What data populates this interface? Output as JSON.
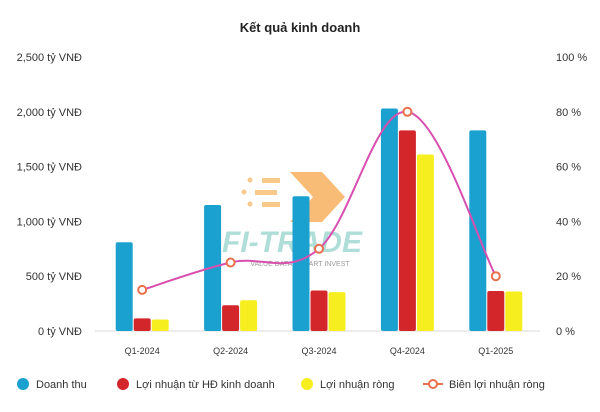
{
  "chart_data": {
    "type": "bar",
    "title": "Kết quả kinh doanh",
    "categories": [
      "Q1-2024",
      "Q2-2024",
      "Q3-2024",
      "Q4-2024",
      "Q1-2025"
    ],
    "y_left": {
      "ticks": [
        "0 tỷ VNĐ",
        "500 tỷ VNĐ",
        "1,000 tỷ VNĐ",
        "1,500 tỷ VNĐ",
        "2,000 tỷ VNĐ",
        "2,500 tỷ VNĐ"
      ],
      "ylim": [
        0,
        2500
      ]
    },
    "y_right": {
      "ticks": [
        "0 %",
        "20 %",
        "40 %",
        "60 %",
        "80 %",
        "100 %"
      ],
      "ylim": [
        0,
        100
      ]
    },
    "series": [
      {
        "name": "Doanh thu",
        "type": "bar",
        "color": "#1ba1cf",
        "values": [
          810,
          1150,
          1230,
          2030,
          1830
        ]
      },
      {
        "name": "Lợi nhuận từ HĐ kinh doanh",
        "type": "bar",
        "color": "#d3262b",
        "values": [
          115,
          235,
          370,
          1830,
          365
        ]
      },
      {
        "name": "Lợi nhuận ròng",
        "type": "bar",
        "color": "#f6ee1e",
        "values": [
          105,
          280,
          355,
          1610,
          360
        ]
      },
      {
        "name": "Biên lợi nhuận ròng",
        "type": "line",
        "axis": "right",
        "color": "#d94fb0",
        "marker_color": "#e8714d",
        "values": [
          15,
          25,
          30,
          80,
          20
        ]
      }
    ],
    "legend_position": "bottom",
    "grid": false
  },
  "watermark": {
    "brand": "FI-TRADE",
    "tagline": "VALUE DATA - SMART INVEST"
  }
}
